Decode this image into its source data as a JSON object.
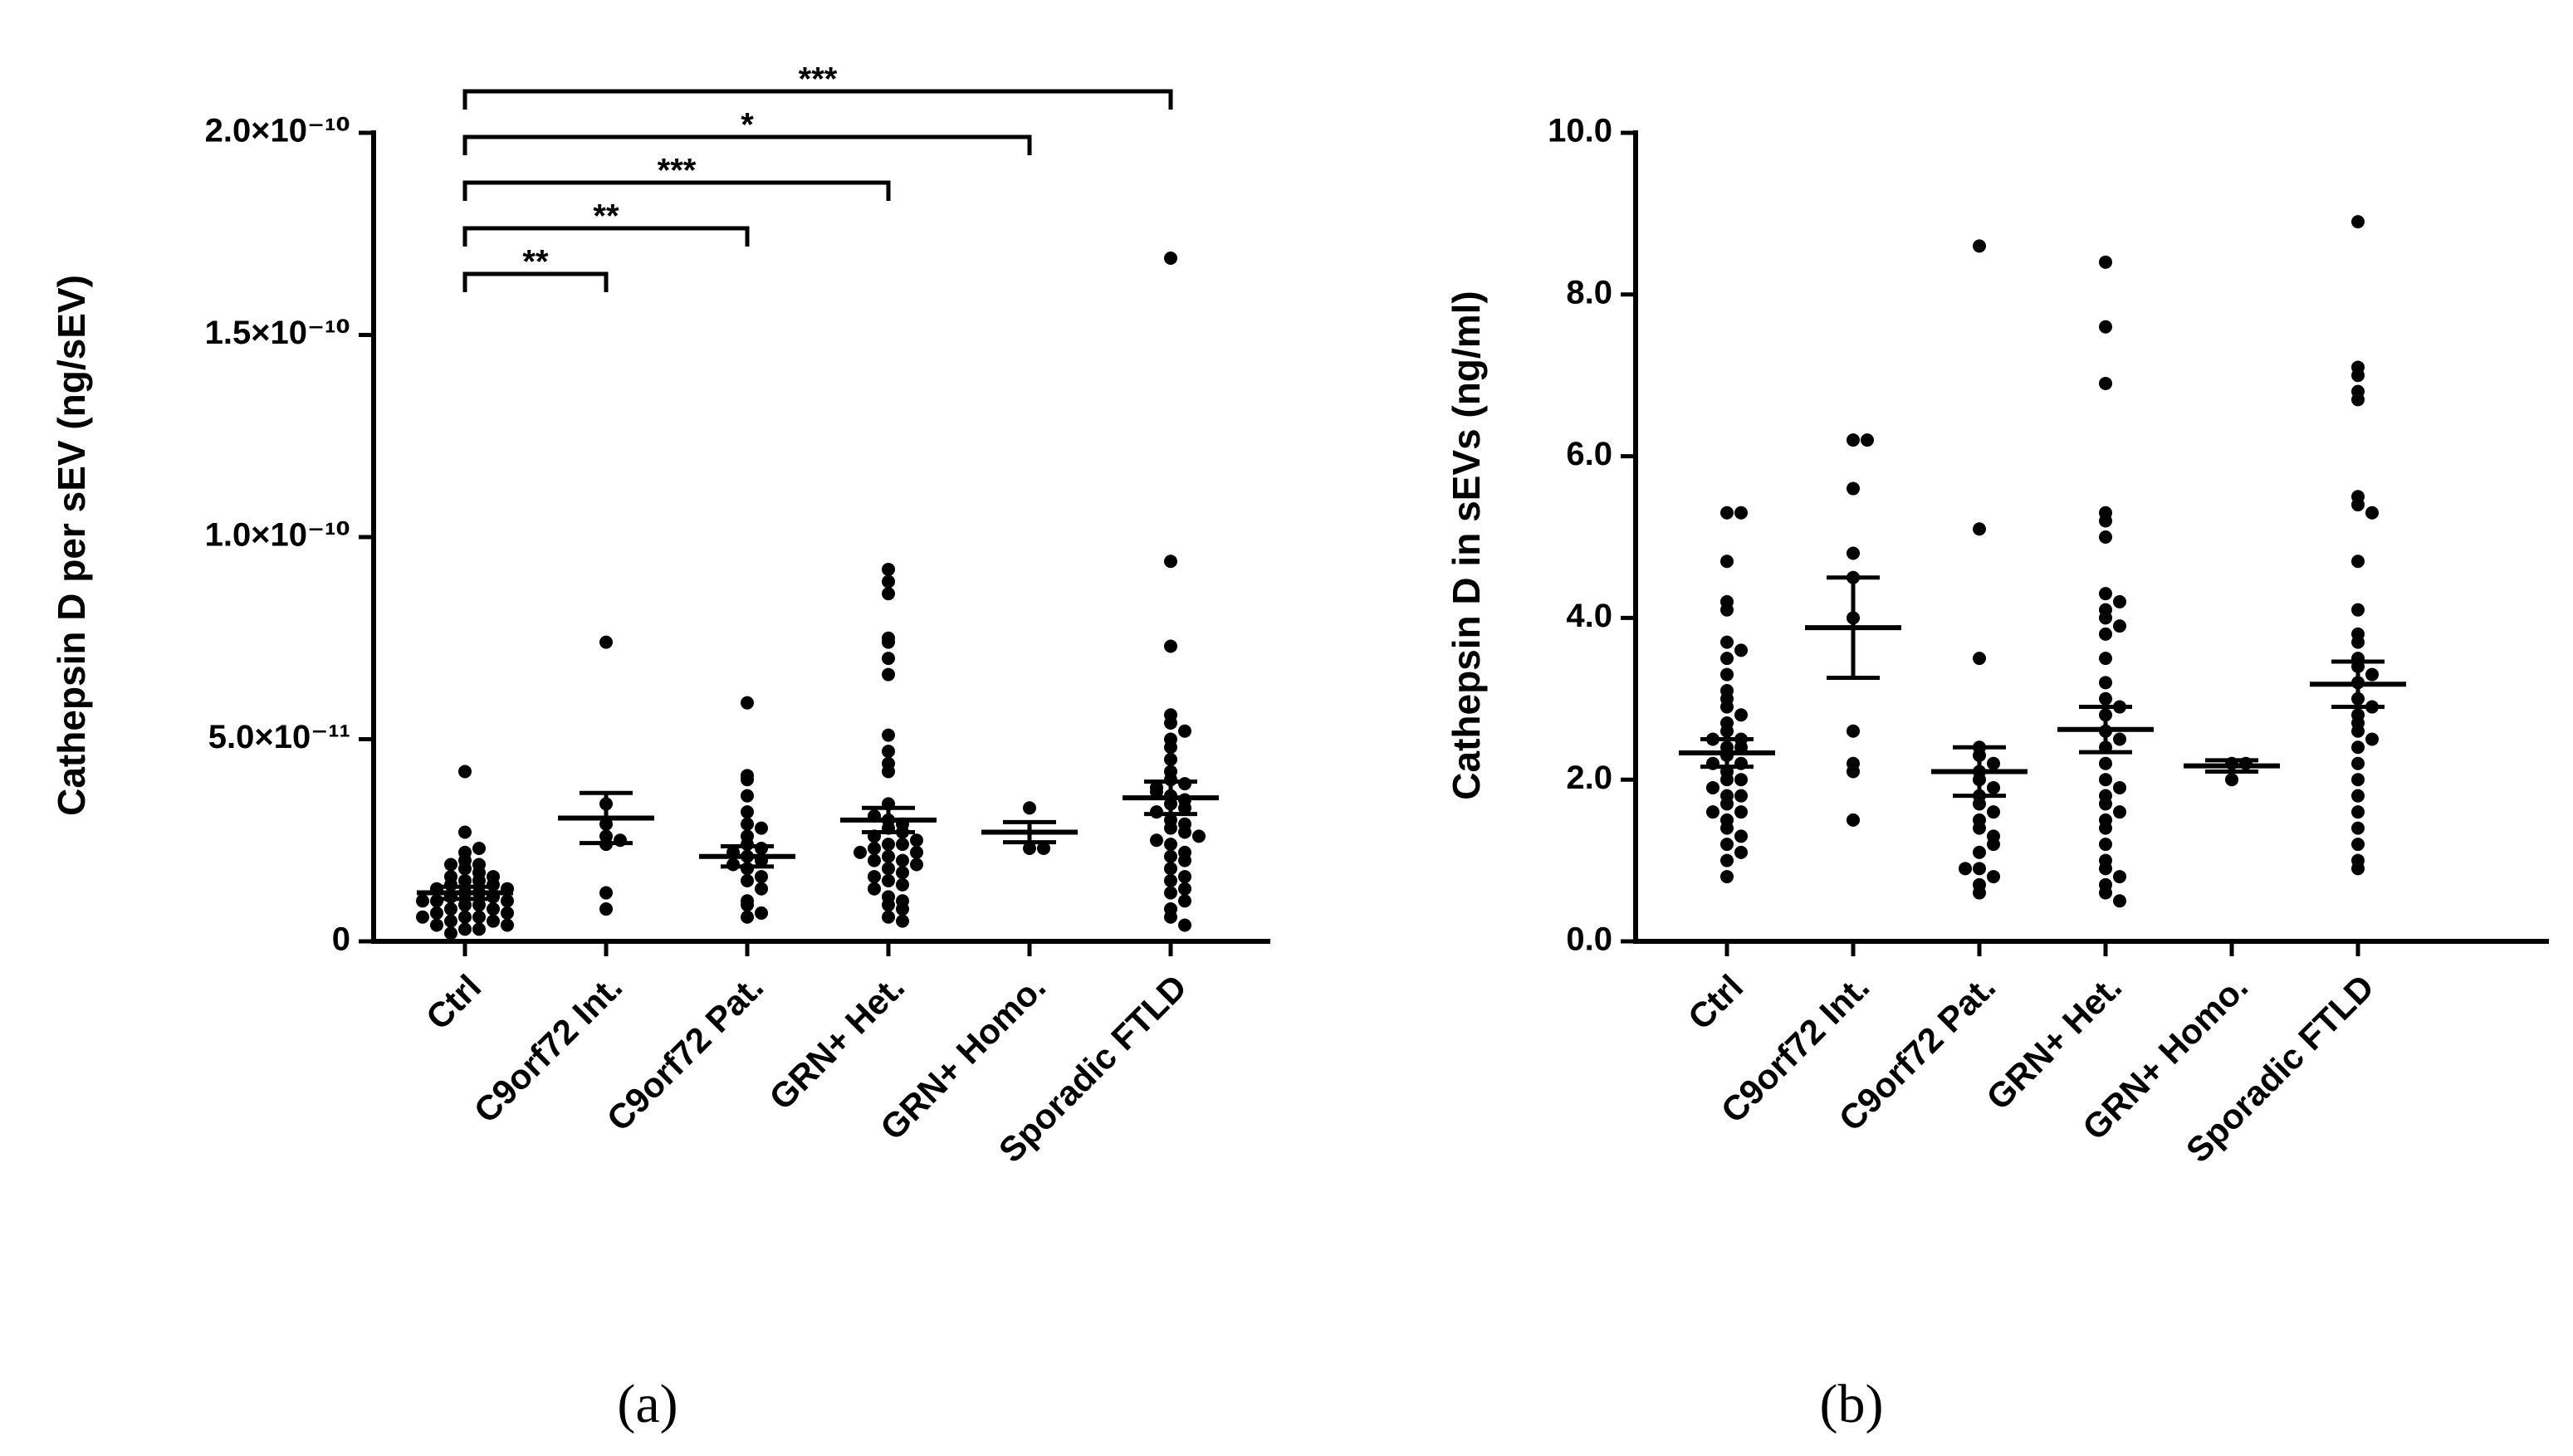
{
  "chart_data": [
    {
      "type": "dotplot",
      "ylabel": "Cathepsin D per sEV (ng/sEV)",
      "caption": "(a)",
      "categories": [
        "Ctrl",
        "C9orf72 Int.",
        "C9orf72 Pat.",
        "GRN+ Het.",
        "GRN+ Homo.",
        "Sporadic FTLD"
      ],
      "ylim": [
        0,
        2e-10
      ],
      "yticks": [
        0,
        {
          "value": 5e-11,
          "label": "5.0×10⁻¹¹"
        },
        {
          "value": 1e-10,
          "label": "1.0×10⁻¹⁰"
        },
        {
          "value": 1.5e-10,
          "label": "1.5×10⁻¹⁰"
        },
        {
          "value": 2e-10,
          "label": "2.0×10⁻¹⁰"
        }
      ],
      "color": "#000000",
      "means": [
        1.2e-11,
        3.05e-11,
        2.1e-11,
        3e-11,
        2.7e-11,
        3.55e-11
      ],
      "sems": [
        1.5e-12,
        6.2e-12,
        2.5e-12,
        3e-12,
        2.5e-12,
        4e-12
      ],
      "points": [
        [
          4.2e-11,
          2.7e-11,
          2.2e-11,
          2e-11,
          1.9e-11,
          1.8e-11,
          1.7e-11,
          1.6e-11,
          1.6e-11,
          1.5e-11,
          1.5e-11,
          1.4e-11,
          1.4e-11,
          1.3e-11,
          1.3e-11,
          1.2e-11,
          1.2e-11,
          1.1e-11,
          1.1e-11,
          1e-11,
          1e-11,
          9e-12,
          9e-12,
          8e-12,
          8e-12,
          7e-12,
          7e-12,
          6e-12,
          6e-12,
          5e-12,
          5e-12,
          4e-12,
          4e-12,
          3e-12,
          3e-12,
          1.9e-11,
          1e-11,
          6e-12,
          2.3e-11,
          2e-12
        ],
        [
          7.4e-11,
          3.4e-11,
          2.9e-11,
          2.6e-11,
          2.5e-11,
          2.4e-11,
          1.2e-11,
          8e-12
        ],
        [
          5.9e-11,
          4.1e-11,
          4e-11,
          3.6e-11,
          3.2e-11,
          2.9e-11,
          2.6e-11,
          2.4e-11,
          2.3e-11,
          2.2e-11,
          2.1e-11,
          2e-11,
          1.9e-11,
          1.8e-11,
          1.6e-11,
          1.5e-11,
          1.3e-11,
          1e-11,
          9e-12,
          7e-12,
          6e-12,
          2.8e-11
        ],
        [
          9.2e-11,
          8.9e-11,
          8.6e-11,
          7.5e-11,
          7.4e-11,
          7e-11,
          6.6e-11,
          5.1e-11,
          4.7e-11,
          4.2e-11,
          3.4e-11,
          3e-11,
          2.8e-11,
          2.7e-11,
          2.6e-11,
          2.5e-11,
          2.4e-11,
          2.4e-11,
          2.3e-11,
          2.2e-11,
          2.2e-11,
          2.1e-11,
          2e-11,
          2e-11,
          1.9e-11,
          1.8e-11,
          1.7e-11,
          1.6e-11,
          1.5e-11,
          1.4e-11,
          1.3e-11,
          1.1e-11,
          1e-11,
          9e-12,
          8e-12,
          6e-12,
          5e-12,
          2.9e-11,
          3.1e-11,
          4.4e-11
        ],
        [
          3.3e-11,
          2.3e-11,
          2.3e-11
        ],
        [
          1.69e-10,
          9.4e-11,
          7.3e-11,
          5.6e-11,
          5.4e-11,
          5e-11,
          4.8e-11,
          4.5e-11,
          4.2e-11,
          4e-11,
          3.9e-11,
          3.8e-11,
          3.6e-11,
          3.5e-11,
          3.4e-11,
          3.3e-11,
          3.2e-11,
          3e-11,
          2.9e-11,
          2.8e-11,
          2.7e-11,
          2.5e-11,
          2.4e-11,
          2.2e-11,
          2.1e-11,
          2e-11,
          1.8e-11,
          1.6e-11,
          1.5e-11,
          1.3e-11,
          1.2e-11,
          1e-11,
          8e-12,
          6e-12,
          4e-12,
          5.2e-11,
          3.7e-11,
          2.6e-11
        ]
      ],
      "annotations": [
        {
          "text": "**",
          "group": "C9orf72 Int."
        },
        {
          "text": "**",
          "group": "C9orf72 Pat."
        },
        {
          "text": "***",
          "group": "GRN+ Het."
        },
        {
          "text": "*",
          "group": "GRN+ Homo."
        },
        {
          "text": "***",
          "group": "Sporadic FTLD"
        }
      ]
    },
    {
      "type": "dotplot",
      "ylabel": "Cathepsin D in sEVs (ng/ml)",
      "caption": "(b)",
      "categories": [
        "Ctrl",
        "C9orf72 Int.",
        "C9orf72 Pat.",
        "GRN+ Het.",
        "GRN+ Homo.",
        "Sporadic FTLD"
      ],
      "ylim": [
        0,
        10
      ],
      "yticks": [
        {
          "value": 0,
          "label": "0.0"
        },
        {
          "value": 2,
          "label": "2.0"
        },
        {
          "value": 4,
          "label": "4.0"
        },
        {
          "value": 6,
          "label": "6.0"
        },
        {
          "value": 8,
          "label": "8.0"
        },
        {
          "value": 10,
          "label": "10.0"
        }
      ],
      "color": "#000000",
      "means": [
        2.33,
        3.88,
        2.1,
        2.62,
        2.17,
        3.18
      ],
      "sems": [
        0.17,
        0.62,
        0.3,
        0.28,
        0.07,
        0.28
      ],
      "points": [
        [
          5.3,
          5.3,
          4.7,
          4.2,
          4.1,
          3.7,
          3.6,
          3.3,
          3.1,
          3.0,
          2.9,
          2.8,
          2.7,
          2.6,
          2.5,
          2.4,
          2.4,
          2.3,
          2.2,
          2.2,
          2.1,
          2.0,
          2.0,
          1.9,
          1.8,
          1.8,
          1.7,
          1.6,
          1.5,
          1.4,
          1.3,
          1.2,
          1.1,
          1.0,
          0.8,
          1.6,
          2.5,
          3.5
        ],
        [
          6.2,
          6.2,
          5.6,
          4.8,
          4.5,
          4.0,
          2.6,
          2.2,
          2.1,
          1.5
        ],
        [
          8.6,
          5.1,
          3.5,
          2.3,
          2.2,
          2.1,
          2.0,
          1.9,
          1.8,
          1.7,
          1.6,
          1.5,
          1.4,
          1.3,
          1.1,
          0.9,
          0.8,
          0.7,
          0.6,
          1.2,
          2.4,
          0.9
        ],
        [
          8.4,
          7.6,
          6.9,
          5.3,
          5.2,
          4.3,
          4.2,
          4.0,
          3.8,
          3.5,
          3.2,
          3.0,
          2.8,
          2.6,
          2.5,
          2.4,
          2.2,
          2.0,
          1.9,
          1.8,
          1.7,
          1.6,
          1.5,
          1.4,
          1.2,
          1.0,
          0.9,
          0.8,
          0.7,
          0.6,
          0.5,
          3.9,
          2.9,
          4.1,
          5.0
        ],
        [
          2.2,
          2.2,
          2.0
        ],
        [
          8.9,
          7.1,
          7.0,
          6.8,
          6.7,
          5.5,
          5.4,
          5.3,
          4.7,
          4.1,
          3.8,
          3.5,
          3.4,
          3.3,
          3.2,
          3.0,
          2.8,
          2.7,
          2.6,
          2.5,
          2.4,
          2.2,
          2.0,
          1.8,
          1.6,
          1.4,
          1.2,
          1.0,
          0.9,
          2.9,
          3.7
        ]
      ]
    }
  ]
}
